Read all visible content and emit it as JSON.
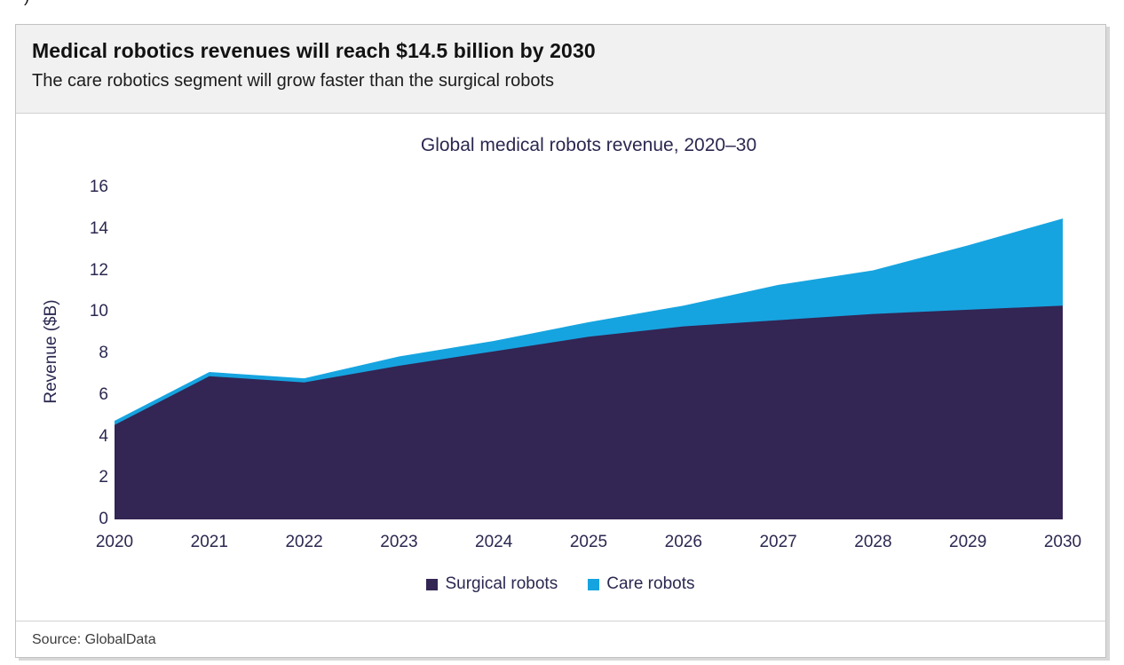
{
  "page": {
    "top_fragment": ")"
  },
  "header": {
    "title": "Medical robotics revenues will reach $14.5 billion by 2030",
    "subtitle": "The care robotics segment will grow faster than the surgical robots"
  },
  "footer": {
    "source": "Source: GlobalData"
  },
  "colors": {
    "surgical": "#332554",
    "care": "#16a4e0",
    "chart_text": "#2b2850",
    "header_bg": "#f1f1f1",
    "border": "#c2c2c2",
    "axis_line": "#d9d9d9"
  },
  "chart_data": {
    "type": "area",
    "stacked": true,
    "title": "Global medical robots revenue, 2020–30",
    "xlabel": "",
    "ylabel": "Revenue ($B)",
    "categories": [
      "2020",
      "2021",
      "2022",
      "2023",
      "2024",
      "2025",
      "2026",
      "2027",
      "2028",
      "2029",
      "2030"
    ],
    "series": [
      {
        "name": "Surgical robots",
        "color": "#332554",
        "values": [
          4.55,
          6.9,
          6.6,
          7.4,
          8.1,
          8.8,
          9.3,
          9.6,
          9.9,
          10.1,
          10.3
        ]
      },
      {
        "name": "Care robots",
        "color": "#16a4e0",
        "values": [
          0.2,
          0.2,
          0.2,
          0.45,
          0.5,
          0.7,
          1.0,
          1.7,
          2.1,
          3.1,
          4.2
        ]
      }
    ],
    "stacked_totals": [
      4.75,
      7.1,
      6.8,
      7.85,
      8.6,
      9.5,
      10.3,
      11.3,
      12.0,
      13.2,
      14.5
    ],
    "ylim": [
      0,
      16
    ],
    "yticks": [
      0,
      2,
      4,
      6,
      8,
      10,
      12,
      14,
      16
    ],
    "grid": false,
    "legend_position": "bottom"
  }
}
